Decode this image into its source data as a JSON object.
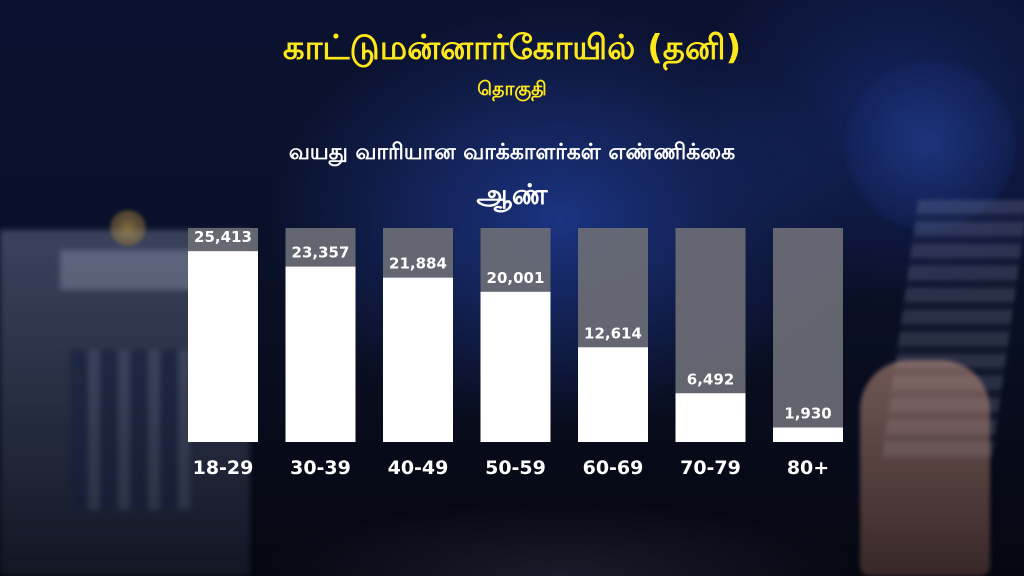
{
  "header": {
    "title": "காட்டுமன்னார்கோயில் (தனி)",
    "subtitle": "தொகுதி",
    "heading": "வயது வாரியான வாக்காளர்கள் எண்ணிக்கை",
    "category": "ஆண்"
  },
  "chart_data": {
    "type": "bar",
    "categories": [
      "18-29",
      "30-39",
      "40-49",
      "50-59",
      "60-69",
      "70-79",
      "80+"
    ],
    "values": [
      25413,
      23357,
      21884,
      20001,
      12614,
      6492,
      1930
    ],
    "value_labels": [
      "25,413",
      "23,357",
      "21,884",
      "20,001",
      "12,614",
      "6,492",
      "1,930"
    ],
    "ylim": [
      0,
      28500
    ],
    "bar_color": "#ffffff",
    "track_color": "#6b6d75",
    "label_color": "#ffffff"
  }
}
